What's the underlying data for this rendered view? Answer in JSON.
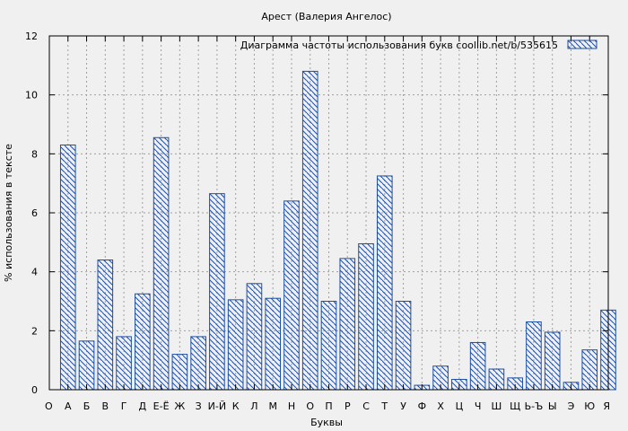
{
  "chart_data": {
    "type": "bar",
    "title": "Арест (Валерия Ангелос)",
    "xlabel": "Буквы",
    "ylabel": "% использования в тексте",
    "legend": {
      "label": "Диаграмма частоты использования букв  coollib.net/b/535615",
      "position": "top-right"
    },
    "ylim": [
      0,
      12
    ],
    "yticks": [
      0,
      2,
      4,
      6,
      8,
      10,
      12
    ],
    "grid": true,
    "bar_style": "diagonal-hatch",
    "colors": {
      "bar_stroke": "#1f4fa0",
      "hatch": "#1f4fa0",
      "background": "#f0f0f0",
      "grid": "#a0a0a0"
    },
    "categories": [
      "О",
      "А",
      "Б",
      "В",
      "Г",
      "Д",
      "Е-Ё",
      "Ж",
      "З",
      "И-Й",
      "К",
      "Л",
      "М",
      "Н",
      "О",
      "П",
      "Р",
      "С",
      "Т",
      "У",
      "Ф",
      "Х",
      "Ц",
      "Ч",
      "Ш",
      "Щ",
      "Ь-Ъ",
      "Ы",
      "Э",
      "Ю",
      "Я"
    ],
    "values": [
      null,
      8.3,
      1.65,
      4.4,
      1.8,
      3.25,
      8.55,
      1.2,
      1.8,
      6.65,
      3.05,
      3.6,
      3.1,
      6.4,
      10.8,
      3.0,
      4.45,
      4.95,
      7.25,
      3.0,
      0.15,
      0.8,
      0.35,
      1.6,
      0.7,
      0.4,
      2.3,
      1.95,
      0.25,
      1.35,
      2.7
    ]
  }
}
